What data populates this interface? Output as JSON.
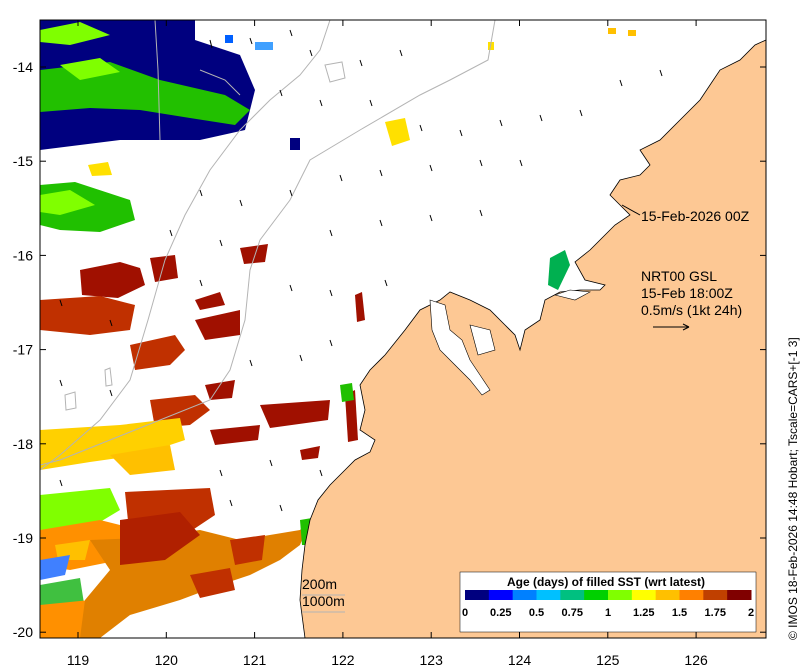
{
  "map": {
    "x_ticks": [
      "119",
      "120",
      "121",
      "122",
      "123",
      "124",
      "125",
      "126"
    ],
    "y_ticks": [
      "-14",
      "-15",
      "-16",
      "-17",
      "-18",
      "-19",
      "-20"
    ],
    "timestamp": "15-Feb-2026 00Z",
    "current_label": {
      "line1": "NRT00 GSL",
      "line2": "15-Feb 18:00Z",
      "line3": "0.5m/s (1kt 24h)"
    },
    "isobath_200": "200m",
    "isobath_1000": "1000m",
    "colorbar": {
      "title": "Age (days) of filled SST (wrt latest)",
      "ticks": [
        "0",
        "0.25",
        "0.5",
        "0.75",
        "1",
        "1.25",
        "1.5",
        "1.75",
        "2"
      ],
      "colors": [
        "#00007f",
        "#0000ff",
        "#0080ff",
        "#00c0ff",
        "#00c080",
        "#00d000",
        "#80ff00",
        "#ffff00",
        "#ffc000",
        "#ff8000",
        "#c04000",
        "#800000"
      ]
    },
    "credit": "© IMOS 18-Feb-2026 14:48 Hobart; Tscale=CARS+[-1 3]",
    "colors": {
      "land": "#fdc894",
      "ocean": "#ffffff",
      "isobath": "#b4b4b4"
    }
  }
}
